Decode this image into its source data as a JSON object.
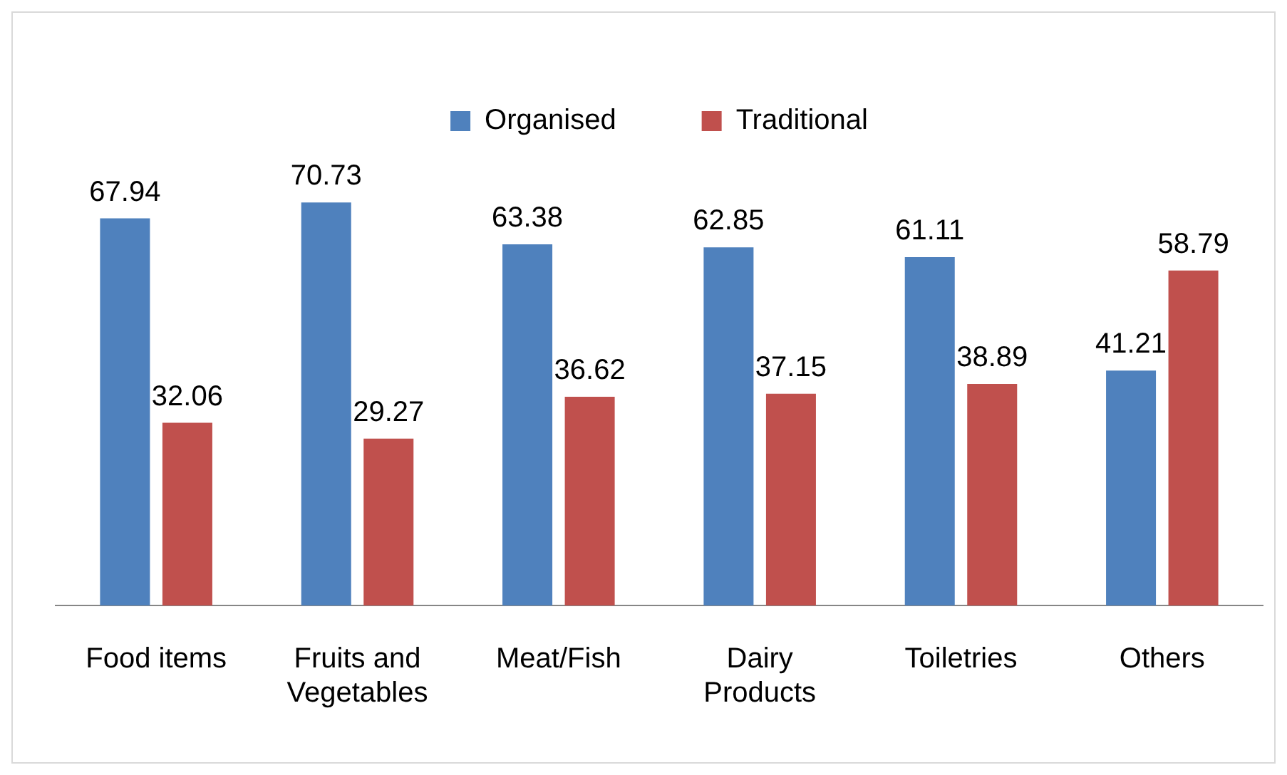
{
  "chart_data": {
    "type": "bar",
    "categories": [
      "Food items",
      "Fruits and Vegetables",
      "Meat/Fish",
      "Dairy Products",
      "Toiletries",
      "Others"
    ],
    "series": [
      {
        "name": "Organised",
        "color": "#4f81bd",
        "values": [
          67.94,
          70.73,
          63.38,
          62.85,
          61.11,
          41.21
        ]
      },
      {
        "name": "Traditional",
        "color": "#c0504d",
        "values": [
          32.06,
          29.27,
          36.62,
          37.15,
          38.89,
          58.79
        ]
      }
    ],
    "data_labels": true,
    "legend": "top",
    "grid": false,
    "tick_labels": "x"
  }
}
